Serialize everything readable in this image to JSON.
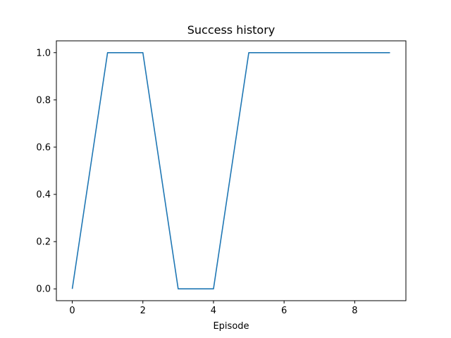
{
  "chart_data": {
    "type": "line",
    "title": "Success history",
    "xlabel": "Episode",
    "ylabel": "",
    "x": [
      0,
      1,
      2,
      3,
      4,
      5,
      6,
      7,
      8,
      9
    ],
    "series": [
      {
        "values": [
          0,
          1,
          1,
          0,
          0,
          1,
          1,
          1,
          1,
          1
        ],
        "color": "#1f77b4"
      }
    ],
    "xlim": [
      -0.45,
      9.45
    ],
    "ylim": [
      -0.05,
      1.05
    ],
    "xticks": [
      0,
      2,
      4,
      6,
      8
    ],
    "xtick_labels": [
      "0",
      "2",
      "4",
      "6",
      "8"
    ],
    "yticks": [
      0.0,
      0.2,
      0.4,
      0.6,
      0.8,
      1.0
    ],
    "ytick_labels": [
      "0.0",
      "0.2",
      "0.4",
      "0.6",
      "0.8",
      "1.0"
    ],
    "grid": false,
    "legend": "none"
  }
}
